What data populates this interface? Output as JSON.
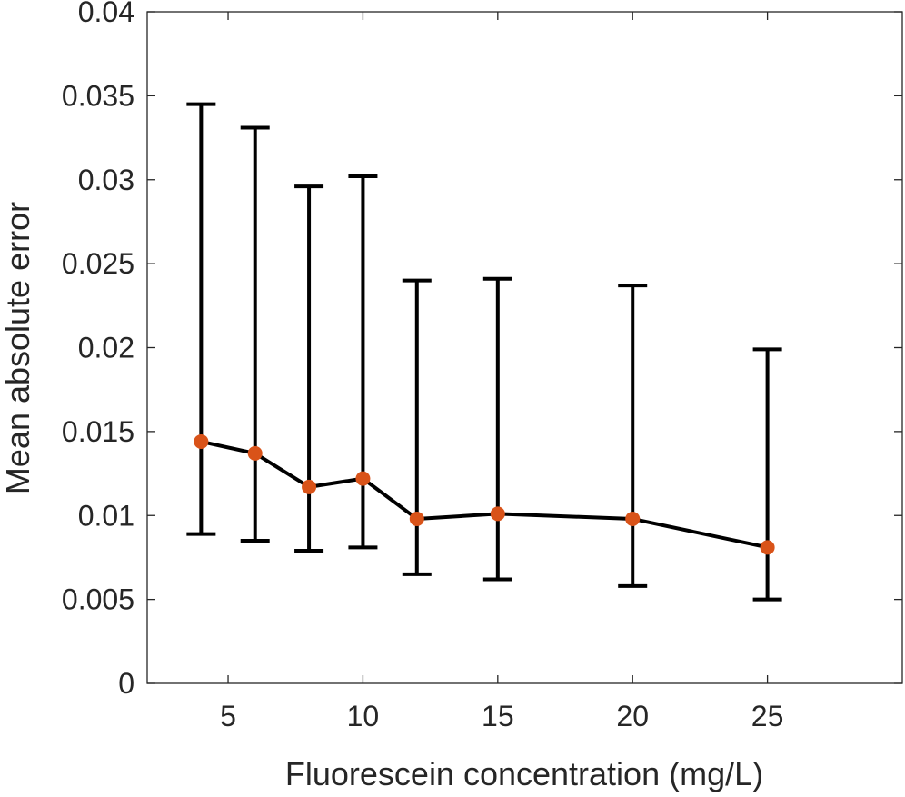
{
  "chart_data": {
    "type": "line",
    "title": "",
    "xlabel": "Fluorescein concentration (mg/L)",
    "ylabel": "Mean absolute error",
    "xlim": [
      2,
      30
    ],
    "ylim": [
      0,
      0.04
    ],
    "xticks": [
      5,
      10,
      15,
      20,
      25
    ],
    "xtick_labels": [
      "5",
      "10",
      "15",
      "20",
      "25"
    ],
    "yticks": [
      0,
      0.005,
      0.01,
      0.015,
      0.02,
      0.025,
      0.03,
      0.035,
      0.04
    ],
    "ytick_labels": [
      "0",
      "0.005",
      "0.01",
      "0.015",
      "0.02",
      "0.025",
      "0.03",
      "0.035",
      "0.04"
    ],
    "grid": false,
    "series": [
      {
        "name": "Mean absolute error",
        "x": [
          4,
          6,
          8,
          10,
          12,
          15,
          20,
          25
        ],
        "y": [
          0.0144,
          0.0137,
          0.0117,
          0.0122,
          0.0098,
          0.0101,
          0.0098,
          0.0081
        ],
        "error_lower": [
          0.0089,
          0.0085,
          0.0079,
          0.0081,
          0.0065,
          0.0062,
          0.0058,
          0.005
        ],
        "error_upper": [
          0.0345,
          0.0331,
          0.0296,
          0.0302,
          0.024,
          0.0241,
          0.0237,
          0.0199
        ],
        "line_color": "#000000",
        "marker_color": "#D95319"
      }
    ]
  }
}
